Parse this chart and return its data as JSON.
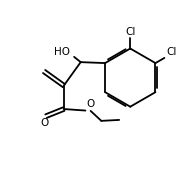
{
  "background": "#ffffff",
  "line_color": "#000000",
  "line_width": 1.3,
  "figsize": [
    1.93,
    1.89
  ],
  "dpi": 100,
  "xlim": [
    0,
    10
  ],
  "ylim": [
    0,
    10
  ]
}
